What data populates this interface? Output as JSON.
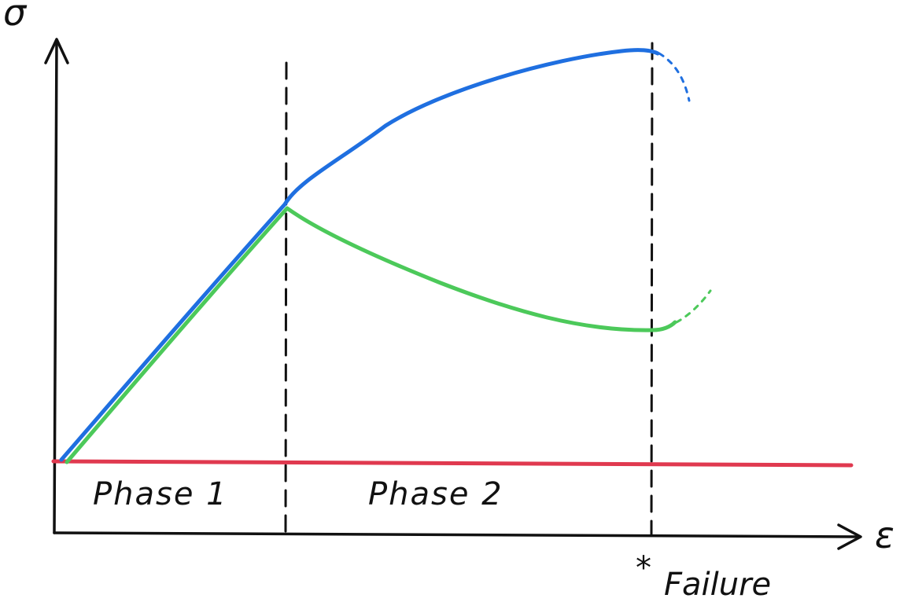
{
  "axes": {
    "y_symbol": "σ",
    "x_symbol": "ε"
  },
  "phases": [
    {
      "label": "Phase 1"
    },
    {
      "label": "Phase 2"
    }
  ],
  "failure": {
    "marker": "*",
    "label": "Failure"
  },
  "colors": {
    "ink": "#111111",
    "blue_curve": "#1f6fe0",
    "green_curve": "#4cc95a",
    "red_line": "#e0394f"
  }
}
